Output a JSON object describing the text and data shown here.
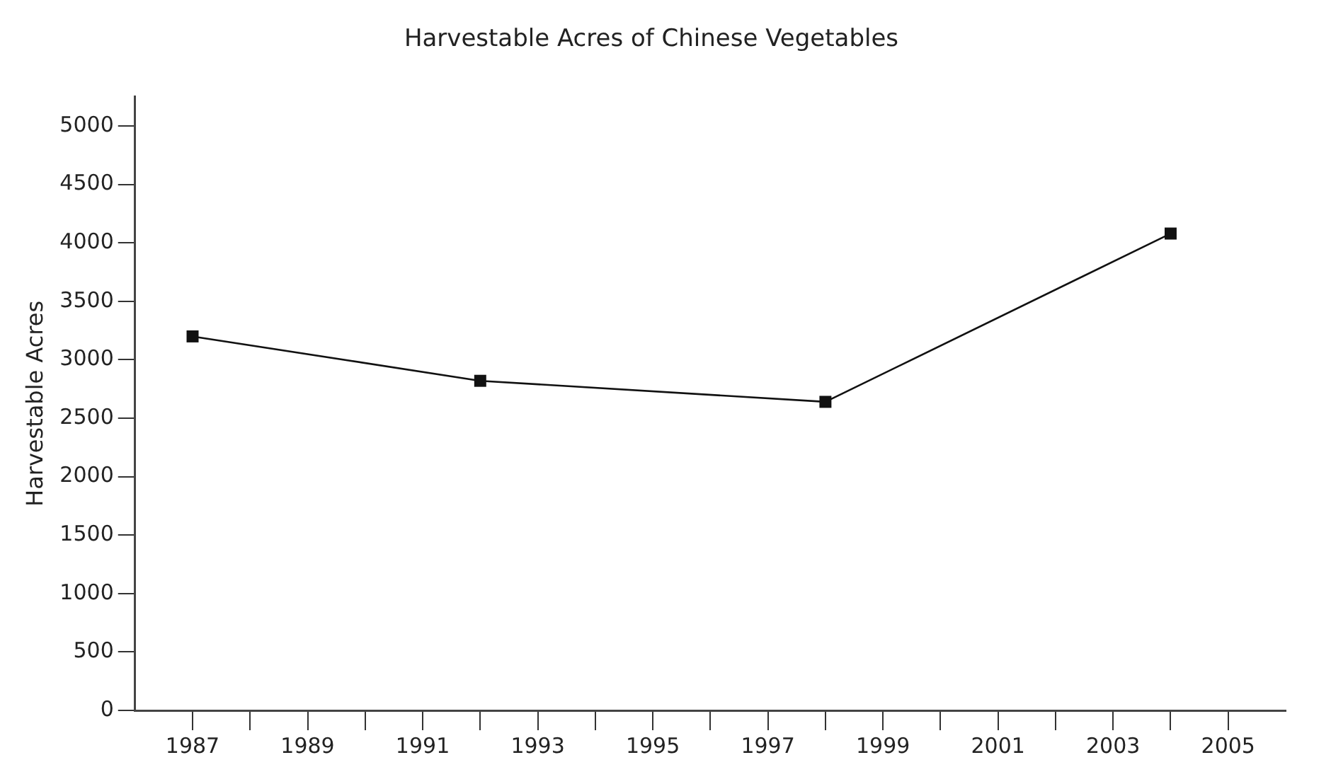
{
  "chart_data": {
    "type": "line",
    "title": "Harvestable Acres of Chinese Vegetables",
    "ylabel": "Harvestable Acres",
    "x": [
      1987,
      1992,
      1998,
      2004
    ],
    "series": [
      {
        "color": "#111111",
        "values": [
          3200,
          2820,
          2640,
          4080
        ]
      }
    ],
    "xlim": [
      1986,
      2006
    ],
    "xticks": [
      1987,
      {
        "value": 1988,
        "label": null
      },
      1989,
      {
        "value": 1990,
        "label": null
      },
      1991,
      {
        "value": 1992,
        "label": null
      },
      1993,
      {
        "value": 1994,
        "label": null
      },
      1995,
      {
        "value": 1996,
        "label": null
      },
      1997,
      {
        "value": 1998,
        "label": null
      },
      1999,
      {
        "value": 2000,
        "label": null
      },
      2001,
      {
        "value": 2002,
        "label": null
      },
      2003,
      {
        "value": 2004,
        "label": null
      },
      2005
    ],
    "ylim": [
      0,
      5250
    ],
    "yticks": [
      0,
      500,
      1000,
      1500,
      2000,
      2500,
      3000,
      3500,
      4000,
      4500,
      5000
    ],
    "marker": "square",
    "line_style": "solid",
    "grid": false,
    "legend": false
  }
}
